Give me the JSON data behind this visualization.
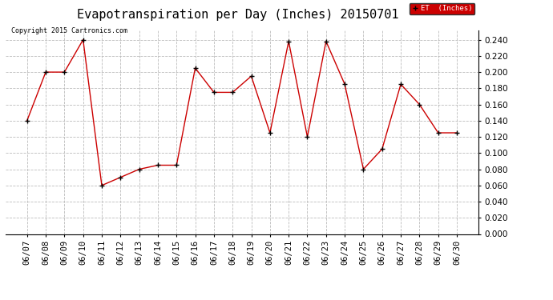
{
  "title": "Evapotranspiration per Day (Inches) 20150701",
  "copyright_text": "Copyright 2015 Cartronics.com",
  "legend_label": "ET  (Inches)",
  "dates": [
    "06/07",
    "06/08",
    "06/09",
    "06/10",
    "06/11",
    "06/12",
    "06/13",
    "06/14",
    "06/15",
    "06/16",
    "06/17",
    "06/18",
    "06/19",
    "06/20",
    "06/21",
    "06/22",
    "06/23",
    "06/24",
    "06/25",
    "06/26",
    "06/27",
    "06/28",
    "06/29",
    "06/30"
  ],
  "values": [
    0.14,
    0.2,
    0.2,
    0.24,
    0.06,
    0.07,
    0.08,
    0.085,
    0.085,
    0.205,
    0.175,
    0.175,
    0.195,
    0.125,
    0.238,
    0.12,
    0.238,
    0.185,
    0.08,
    0.105,
    0.185,
    0.16,
    0.125,
    0.125
  ],
  "line_color": "#cc0000",
  "marker_color": "#000000",
  "background_color": "#ffffff",
  "grid_color": "#bbbbbb",
  "ylim": [
    0.0,
    0.252
  ],
  "yticks": [
    0.0,
    0.02,
    0.04,
    0.06,
    0.08,
    0.1,
    0.12,
    0.14,
    0.16,
    0.18,
    0.2,
    0.22,
    0.24
  ],
  "legend_bg": "#cc0000",
  "legend_text_color": "#ffffff",
  "title_fontsize": 11,
  "copyright_fontsize": 6,
  "tick_fontsize": 7.5
}
